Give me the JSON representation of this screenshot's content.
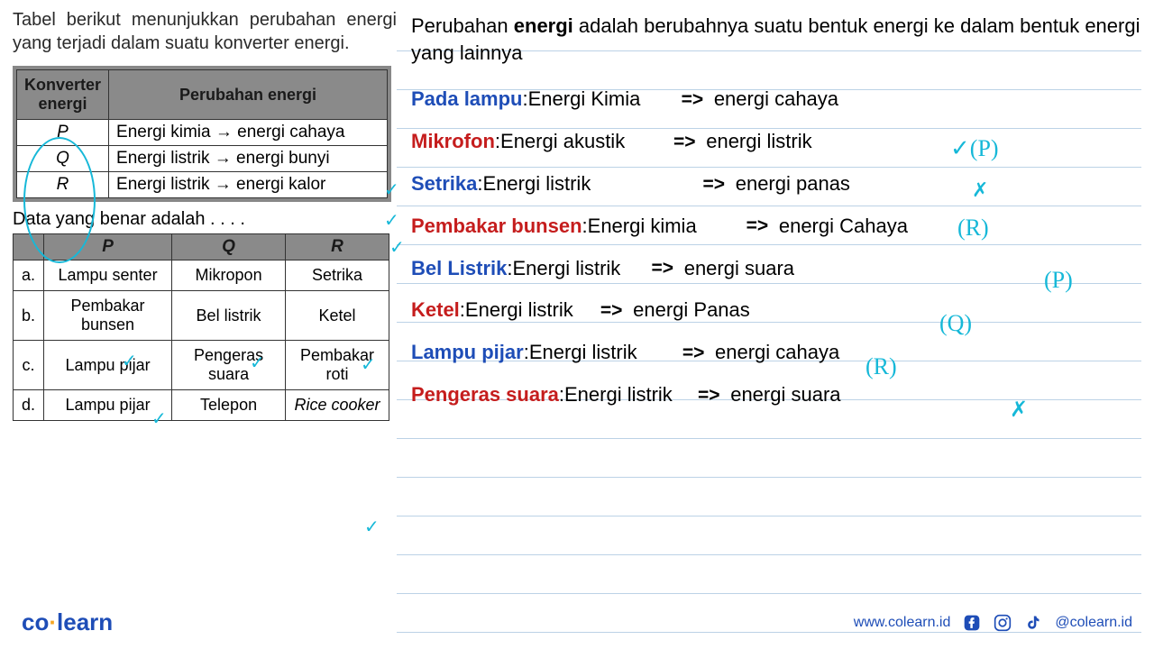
{
  "intro": "Tabel berikut menunjukkan perubahan energi yang terjadi dalam suatu konverter energi.",
  "table1": {
    "headers": [
      "Konverter energi",
      "Perubahan energi"
    ],
    "rows": [
      {
        "k": "P",
        "e": "Energi kimia → energi cahaya"
      },
      {
        "k": "Q",
        "e": "Energi listrik → energi bunyi"
      },
      {
        "k": "R",
        "e": "Energi listrik → energi kalor"
      }
    ]
  },
  "caption": "Data yang benar adalah . . . .",
  "table2": {
    "headers": [
      "",
      "P",
      "Q",
      "R"
    ],
    "rows": [
      {
        "l": "a.",
        "p": "Lampu senter",
        "q": "Mikropon",
        "r": "Setrika"
      },
      {
        "l": "b.",
        "p": "Pembakar bunsen",
        "q": "Bel listrik",
        "r": "Ketel"
      },
      {
        "l": "c.",
        "p": "Lampu pijar",
        "q": "Pengeras suara",
        "r": "Pembakar roti"
      },
      {
        "l": "d.",
        "p": "Lampu pijar",
        "q": "Telepon",
        "r": "Rice cooker"
      }
    ]
  },
  "definition": {
    "pre": "Perubahan ",
    "bold": "energi",
    "post": "  adalah berubahnya suatu bentuk energi ke dalam bentuk energi yang lainnya"
  },
  "lines": [
    {
      "label": "Pada lampu",
      "color": "blue",
      "left": "Energi Kimia",
      "right": "energi cahaya",
      "leftW": 170
    },
    {
      "label": "Mikrofon",
      "color": "red",
      "left": "Energi akustik",
      "right": "energi listrik",
      "leftW": 192
    },
    {
      "label": "Setrika",
      "color": "blue",
      "left": "Energi listrik",
      "right": "energi panas",
      "leftW": 244
    },
    {
      "label": "Pembakar bunsen",
      "color": "red",
      "left": "Energi kimia",
      "right": "energi Cahaya",
      "leftW": 176
    },
    {
      "label": "Bel Listrik",
      "color": "blue",
      "left": "Energi listrik",
      "right": "energi suara",
      "leftW": 154
    },
    {
      "label": "Ketel",
      "color": "red",
      "left": "Energi listrik",
      "right": "energi Panas",
      "leftW": 150
    },
    {
      "label": "Lampu pijar",
      "color": "blue",
      "left": "Energi listrik",
      "right": "energi cahaya",
      "leftW": 170
    },
    {
      "label": "Pengeras suara",
      "color": "red",
      "left": "Energi listrik",
      "right": "energi suara",
      "leftW": 148
    }
  ],
  "hw": {
    "p_ann": "(P)",
    "check": "✓",
    "x": "✗",
    "r_ann": "(R)",
    "p2_ann": "(P)",
    "q_ann": "(Q)",
    "r2_ann": "(R)"
  },
  "footer": {
    "brand_co": "co",
    "brand_learn": "learn",
    "url": "www.colearn.id",
    "handle": "@colearn.id"
  }
}
